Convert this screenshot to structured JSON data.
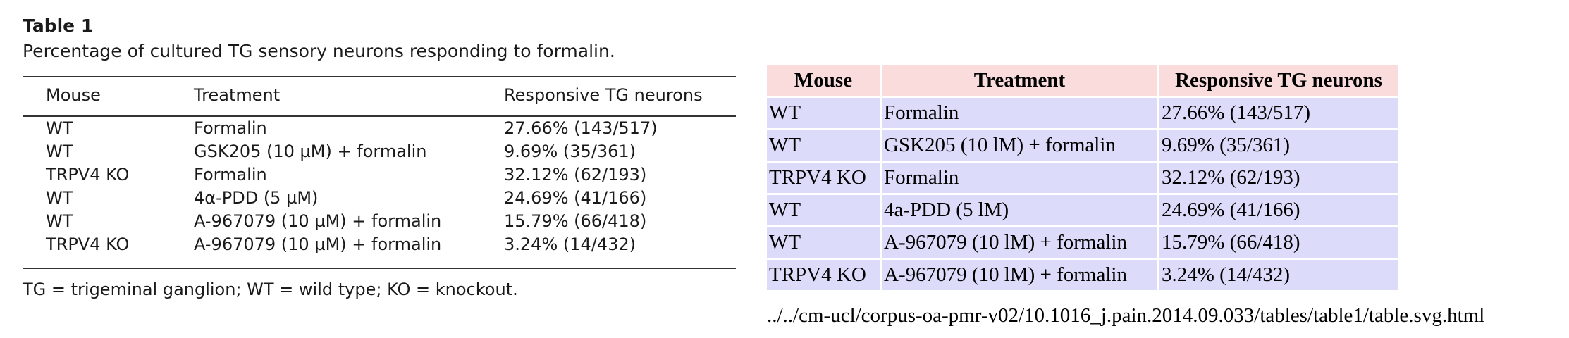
{
  "paper_table": {
    "title": "Table 1",
    "caption": "Percentage of cultured TG sensory neurons responding to formalin.",
    "headers": [
      "Mouse",
      "Treatment",
      "Responsive TG neurons"
    ],
    "rows": [
      [
        "WT",
        "Formalin",
        "27.66% (143/517)"
      ],
      [
        "WT",
        "GSK205 (10 µM) + formalin",
        "9.69% (35/361)"
      ],
      [
        "TRPV4 KO",
        "Formalin",
        "32.12% (62/193)"
      ],
      [
        "WT",
        "4α-PDD (5 µM)",
        "24.69% (41/166)"
      ],
      [
        "WT",
        "A-967079 (10 µM) + formalin",
        "15.79% (66/418)"
      ],
      [
        "TRPV4 KO",
        "A-967079 (10 µM) + formalin",
        "3.24% (14/432)"
      ]
    ],
    "footnote": "TG = trigeminal ganglion; WT = wild type; KO = knockout."
  },
  "rendered_table": {
    "headers": [
      "Mouse",
      "Treatment",
      "Responsive TG neurons"
    ],
    "rows": [
      [
        "WT",
        "Formalin",
        "27.66% (143/517)"
      ],
      [
        "WT",
        "GSK205 (10 lM) + formalin",
        "9.69% (35/361)"
      ],
      [
        "TRPV4 KO",
        "Formalin",
        "32.12% (62/193)"
      ],
      [
        "WT",
        "4a-PDD (5 lM)",
        "24.69% (41/166)"
      ],
      [
        "WT",
        "A-967079 (10 lM) + formalin",
        "15.79% (66/418)"
      ],
      [
        "TRPV4 KO",
        "A-967079 (10 lM) + formalin",
        "3.24% (14/432)"
      ]
    ],
    "header_bg": "#fadcdc",
    "cell_bg": "#dcdcfa"
  },
  "file_path": "../../cm-ucl/corpus-oa-pmr-v02/10.1016_j.pain.2014.09.033/tables/table1/table.svg.html"
}
